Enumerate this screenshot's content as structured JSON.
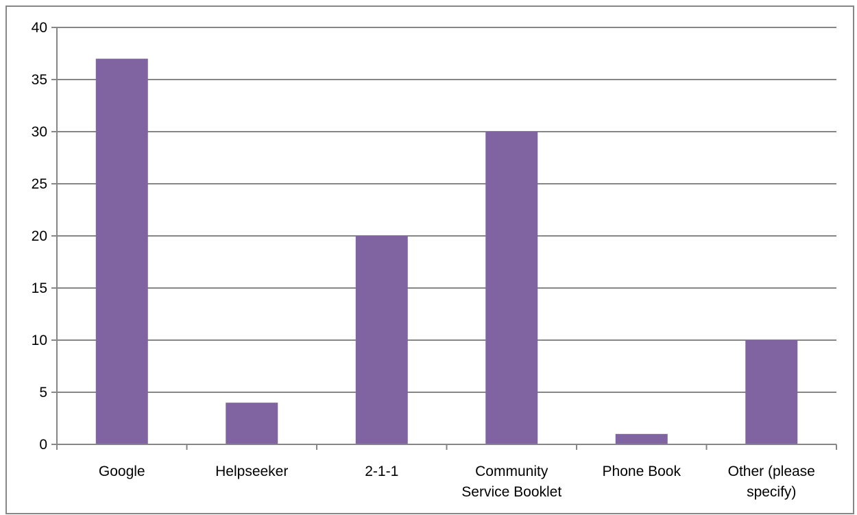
{
  "chart_data": {
    "type": "bar",
    "title": "",
    "xlabel": "",
    "ylabel": "",
    "categories": [
      [
        "Google"
      ],
      [
        "Helpseeker"
      ],
      [
        "2-1-1"
      ],
      [
        "Community",
        "Service Booklet"
      ],
      [
        "Phone Book"
      ],
      [
        "Other (please",
        "specify)"
      ]
    ],
    "values": [
      37,
      4,
      20,
      30,
      1,
      10
    ],
    "ylim": [
      0,
      40
    ],
    "yticks": [
      0,
      5,
      10,
      15,
      20,
      25,
      30,
      35,
      40
    ],
    "grid": "horizontal",
    "legend": "none",
    "bar_color": "#8064A2",
    "grid_color": "#868686"
  }
}
